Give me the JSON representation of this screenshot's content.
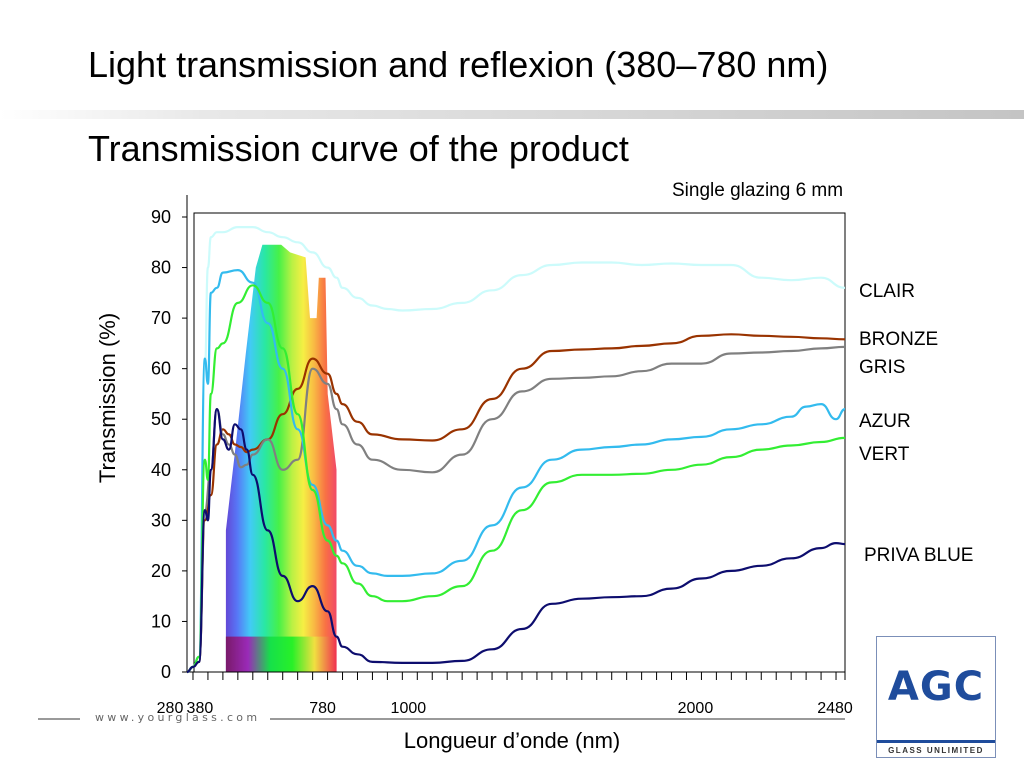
{
  "page": {
    "title": "Light transmission and reflexion (380–780 nm)",
    "subtitle": "Transmission curve of the product",
    "footer_url": "www.yourglass.com",
    "logo": {
      "mark": "AGC",
      "tagline": "GLASS UNLIMITED",
      "color": "#1f4c9c"
    }
  },
  "chart_data": {
    "type": "line",
    "title": "Transmission curve of the product",
    "subtitle": "Single glazing 6 mm",
    "xlabel": "Longueur d’onde (nm)",
    "ylabel": "Transmission (%)",
    "xlim": [
      280,
      2480
    ],
    "ylim": [
      0,
      90
    ],
    "yticks": [
      0,
      10,
      20,
      30,
      40,
      50,
      60,
      70,
      80,
      90
    ],
    "xticks_labeled": [
      {
        "value": 280,
        "label": "280"
      },
      {
        "value": 380,
        "label": "380"
      },
      {
        "value": 780,
        "label": "780"
      },
      {
        "value": 1000,
        "label": "1000"
      },
      {
        "value": 2000,
        "label": "2000"
      },
      {
        "value": 2480,
        "label": "2480"
      }
    ],
    "minor_tick_step": 50,
    "grid": false,
    "legend_placement": "right",
    "visible_spectrum": {
      "from": 380,
      "to": 780,
      "shown_as": "rainbow band"
    },
    "series": [
      {
        "name": "CLAIR",
        "color": "#ccfbfb",
        "x": [
          280,
          300,
          320,
          340,
          350,
          360,
          380,
          400,
          450,
          500,
          550,
          600,
          650,
          700,
          750,
          780,
          800,
          850,
          900,
          950,
          1000,
          1100,
          1200,
          1300,
          1400,
          1500,
          1600,
          1700,
          1800,
          1900,
          2000,
          2100,
          2200,
          2300,
          2400,
          2480
        ],
        "y": [
          0,
          1,
          3,
          60,
          80,
          86,
          87,
          87,
          88,
          88,
          87,
          86,
          85,
          83,
          80,
          78,
          76,
          74,
          72.5,
          71.8,
          71.5,
          71.8,
          73,
          75.5,
          78.5,
          80.5,
          81,
          81,
          80.5,
          80.8,
          80.5,
          80.5,
          78,
          77.5,
          78,
          76
        ]
      },
      {
        "name": "BRONZE",
        "color": "#993300",
        "x": [
          280,
          300,
          320,
          340,
          360,
          380,
          400,
          420,
          440,
          460,
          480,
          500,
          550,
          600,
          650,
          700,
          750,
          780,
          800,
          850,
          900,
          1000,
          1100,
          1200,
          1300,
          1400,
          1500,
          1600,
          1700,
          1800,
          1900,
          2000,
          2100,
          2200,
          2300,
          2400,
          2480
        ],
        "y": [
          0,
          1,
          2,
          30,
          35,
          45,
          48,
          47,
          45,
          44.5,
          43.5,
          44,
          46,
          51,
          56,
          62,
          59,
          55,
          53,
          49.5,
          47,
          46,
          45.8,
          48,
          54,
          60,
          63.5,
          63.8,
          64,
          64.5,
          65,
          66.5,
          66.8,
          66.5,
          66.3,
          66,
          65.8
        ]
      },
      {
        "name": "GRIS",
        "color": "#808080",
        "x": [
          280,
          300,
          320,
          340,
          360,
          380,
          400,
          420,
          440,
          460,
          480,
          500,
          550,
          600,
          650,
          700,
          750,
          780,
          800,
          850,
          900,
          1000,
          1100,
          1200,
          1300,
          1400,
          1500,
          1600,
          1700,
          1800,
          1900,
          2000,
          2100,
          2200,
          2300,
          2400,
          2480
        ],
        "y": [
          0,
          1,
          2,
          32,
          40,
          52,
          47,
          45,
          43,
          40.5,
          41,
          43,
          46,
          40,
          42,
          60,
          57,
          52,
          49,
          45,
          42,
          40,
          39.5,
          43,
          50,
          55.5,
          58,
          58.2,
          58.5,
          59.5,
          61,
          61,
          63,
          63.2,
          63.5,
          64,
          64.3
        ]
      },
      {
        "name": "AZUR",
        "color": "#33bbee",
        "x": [
          280,
          300,
          320,
          340,
          350,
          360,
          380,
          400,
          450,
          500,
          550,
          600,
          650,
          700,
          750,
          780,
          800,
          850,
          900,
          950,
          1000,
          1100,
          1200,
          1300,
          1400,
          1500,
          1600,
          1700,
          1800,
          1900,
          2000,
          2100,
          2200,
          2300,
          2350,
          2400,
          2450,
          2480
        ],
        "y": [
          0,
          1,
          3,
          62,
          57,
          75,
          76,
          79,
          79.5,
          77,
          69,
          60,
          48,
          37,
          29,
          26,
          24,
          21,
          19.5,
          19,
          19,
          19.5,
          22,
          29,
          36.5,
          42,
          44,
          44.5,
          45,
          46,
          46.5,
          48,
          49,
          50.5,
          52.5,
          53,
          50,
          52
        ]
      },
      {
        "name": "VERT",
        "color": "#33ee33",
        "x": [
          280,
          300,
          320,
          340,
          350,
          360,
          380,
          400,
          450,
          500,
          550,
          600,
          650,
          700,
          750,
          780,
          800,
          850,
          900,
          950,
          1000,
          1100,
          1200,
          1300,
          1400,
          1500,
          1600,
          1700,
          1800,
          1900,
          2000,
          2100,
          2200,
          2300,
          2400,
          2480
        ],
        "y": [
          0,
          1,
          3,
          42,
          38,
          55,
          64,
          65,
          73,
          76.5,
          73,
          64,
          51,
          36,
          26,
          23,
          21.5,
          17.5,
          15,
          14,
          14,
          15,
          17,
          24,
          32,
          37.5,
          39,
          39,
          39.2,
          40,
          41,
          42.5,
          44,
          44.8,
          45.5,
          46.3
        ]
      },
      {
        "name": "PRIVA BLUE",
        "color": "#0d0d6e",
        "x": [
          280,
          300,
          320,
          340,
          350,
          360,
          380,
          400,
          420,
          440,
          460,
          480,
          500,
          550,
          600,
          650,
          700,
          750,
          780,
          800,
          850,
          900,
          1000,
          1100,
          1200,
          1300,
          1400,
          1500,
          1600,
          1700,
          1800,
          1900,
          2000,
          2100,
          2200,
          2300,
          2400,
          2450,
          2480
        ],
        "y": [
          0,
          1,
          2,
          32,
          30,
          40,
          52,
          46,
          44,
          49,
          48,
          44,
          39,
          28,
          19,
          14,
          17,
          12,
          7,
          5,
          3.5,
          2,
          1.8,
          1.8,
          2.2,
          4.5,
          8.5,
          13.5,
          14.5,
          14.8,
          15,
          16.5,
          18.5,
          20,
          21,
          22.5,
          24.5,
          25.5,
          25.3
        ]
      }
    ]
  }
}
